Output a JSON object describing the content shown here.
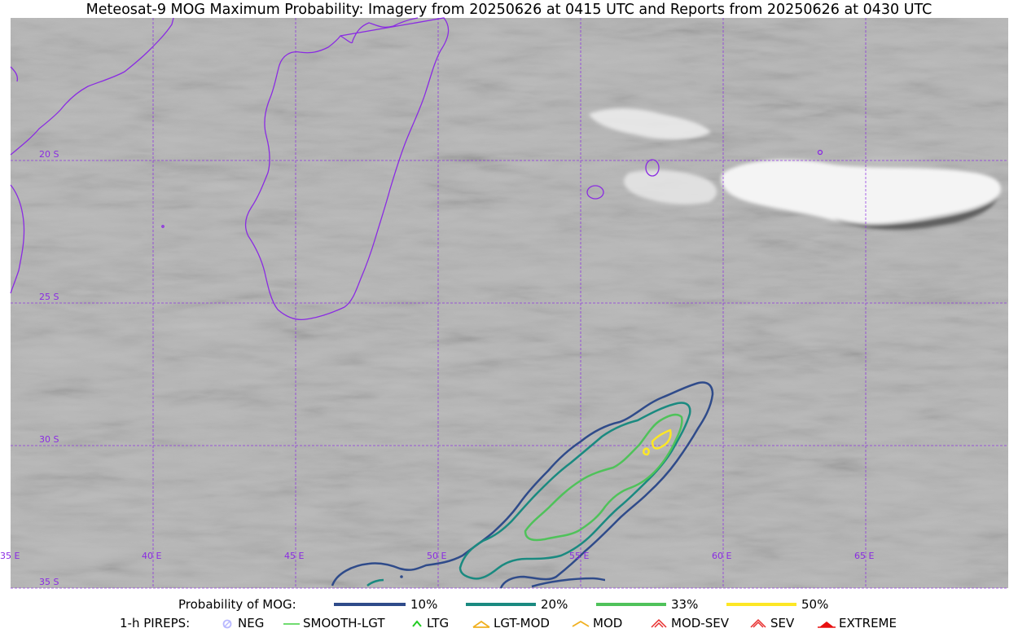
{
  "title": "Meteosat-9 MOG Maximum Probability: Imagery from 20250626 at 0415 UTC and Reports from 20250626 at 0430 UTC",
  "map": {
    "lat_labels": [
      "20 S",
      "25 S",
      "30 S",
      "35 S"
    ],
    "lon_labels": [
      "35 E",
      "40 E",
      "45 E",
      "50 E",
      "55 E",
      "60 E",
      "65 E"
    ],
    "gridline_color": "#8a2be2",
    "coastline_color": "#8a2be2"
  },
  "legend_probability": {
    "title": "Probability of MOG:",
    "items": [
      {
        "label": "10%",
        "color": "#2f4b8a"
      },
      {
        "label": "20%",
        "color": "#1a8a80"
      },
      {
        "label": "33%",
        "color": "#4fc25a"
      },
      {
        "label": "50%",
        "color": "#fde725"
      }
    ]
  },
  "legend_pireps": {
    "title": "1-h PIREPS:",
    "items": [
      {
        "label": "NEG",
        "color": "#b8b8ff",
        "icon": "neg-icon"
      },
      {
        "label": "SMOOTH-LGT",
        "color": "#40d040",
        "icon": "smooth-lgt-line-icon"
      },
      {
        "label": "LTG",
        "color": "#22cc22",
        "icon": "ltg-caret-icon"
      },
      {
        "label": "LGT-MOD",
        "color": "#f0b020",
        "icon": "lgt-mod-icon"
      },
      {
        "label": "MOD",
        "color": "#f0b020",
        "icon": "mod-icon"
      },
      {
        "label": "MOD-SEV",
        "color": "#e83030",
        "icon": "mod-sev-icon"
      },
      {
        "label": "SEV",
        "color": "#e83030",
        "icon": "sev-icon"
      },
      {
        "label": "EXTREME",
        "color": "#e81010",
        "icon": "extreme-icon"
      }
    ]
  }
}
